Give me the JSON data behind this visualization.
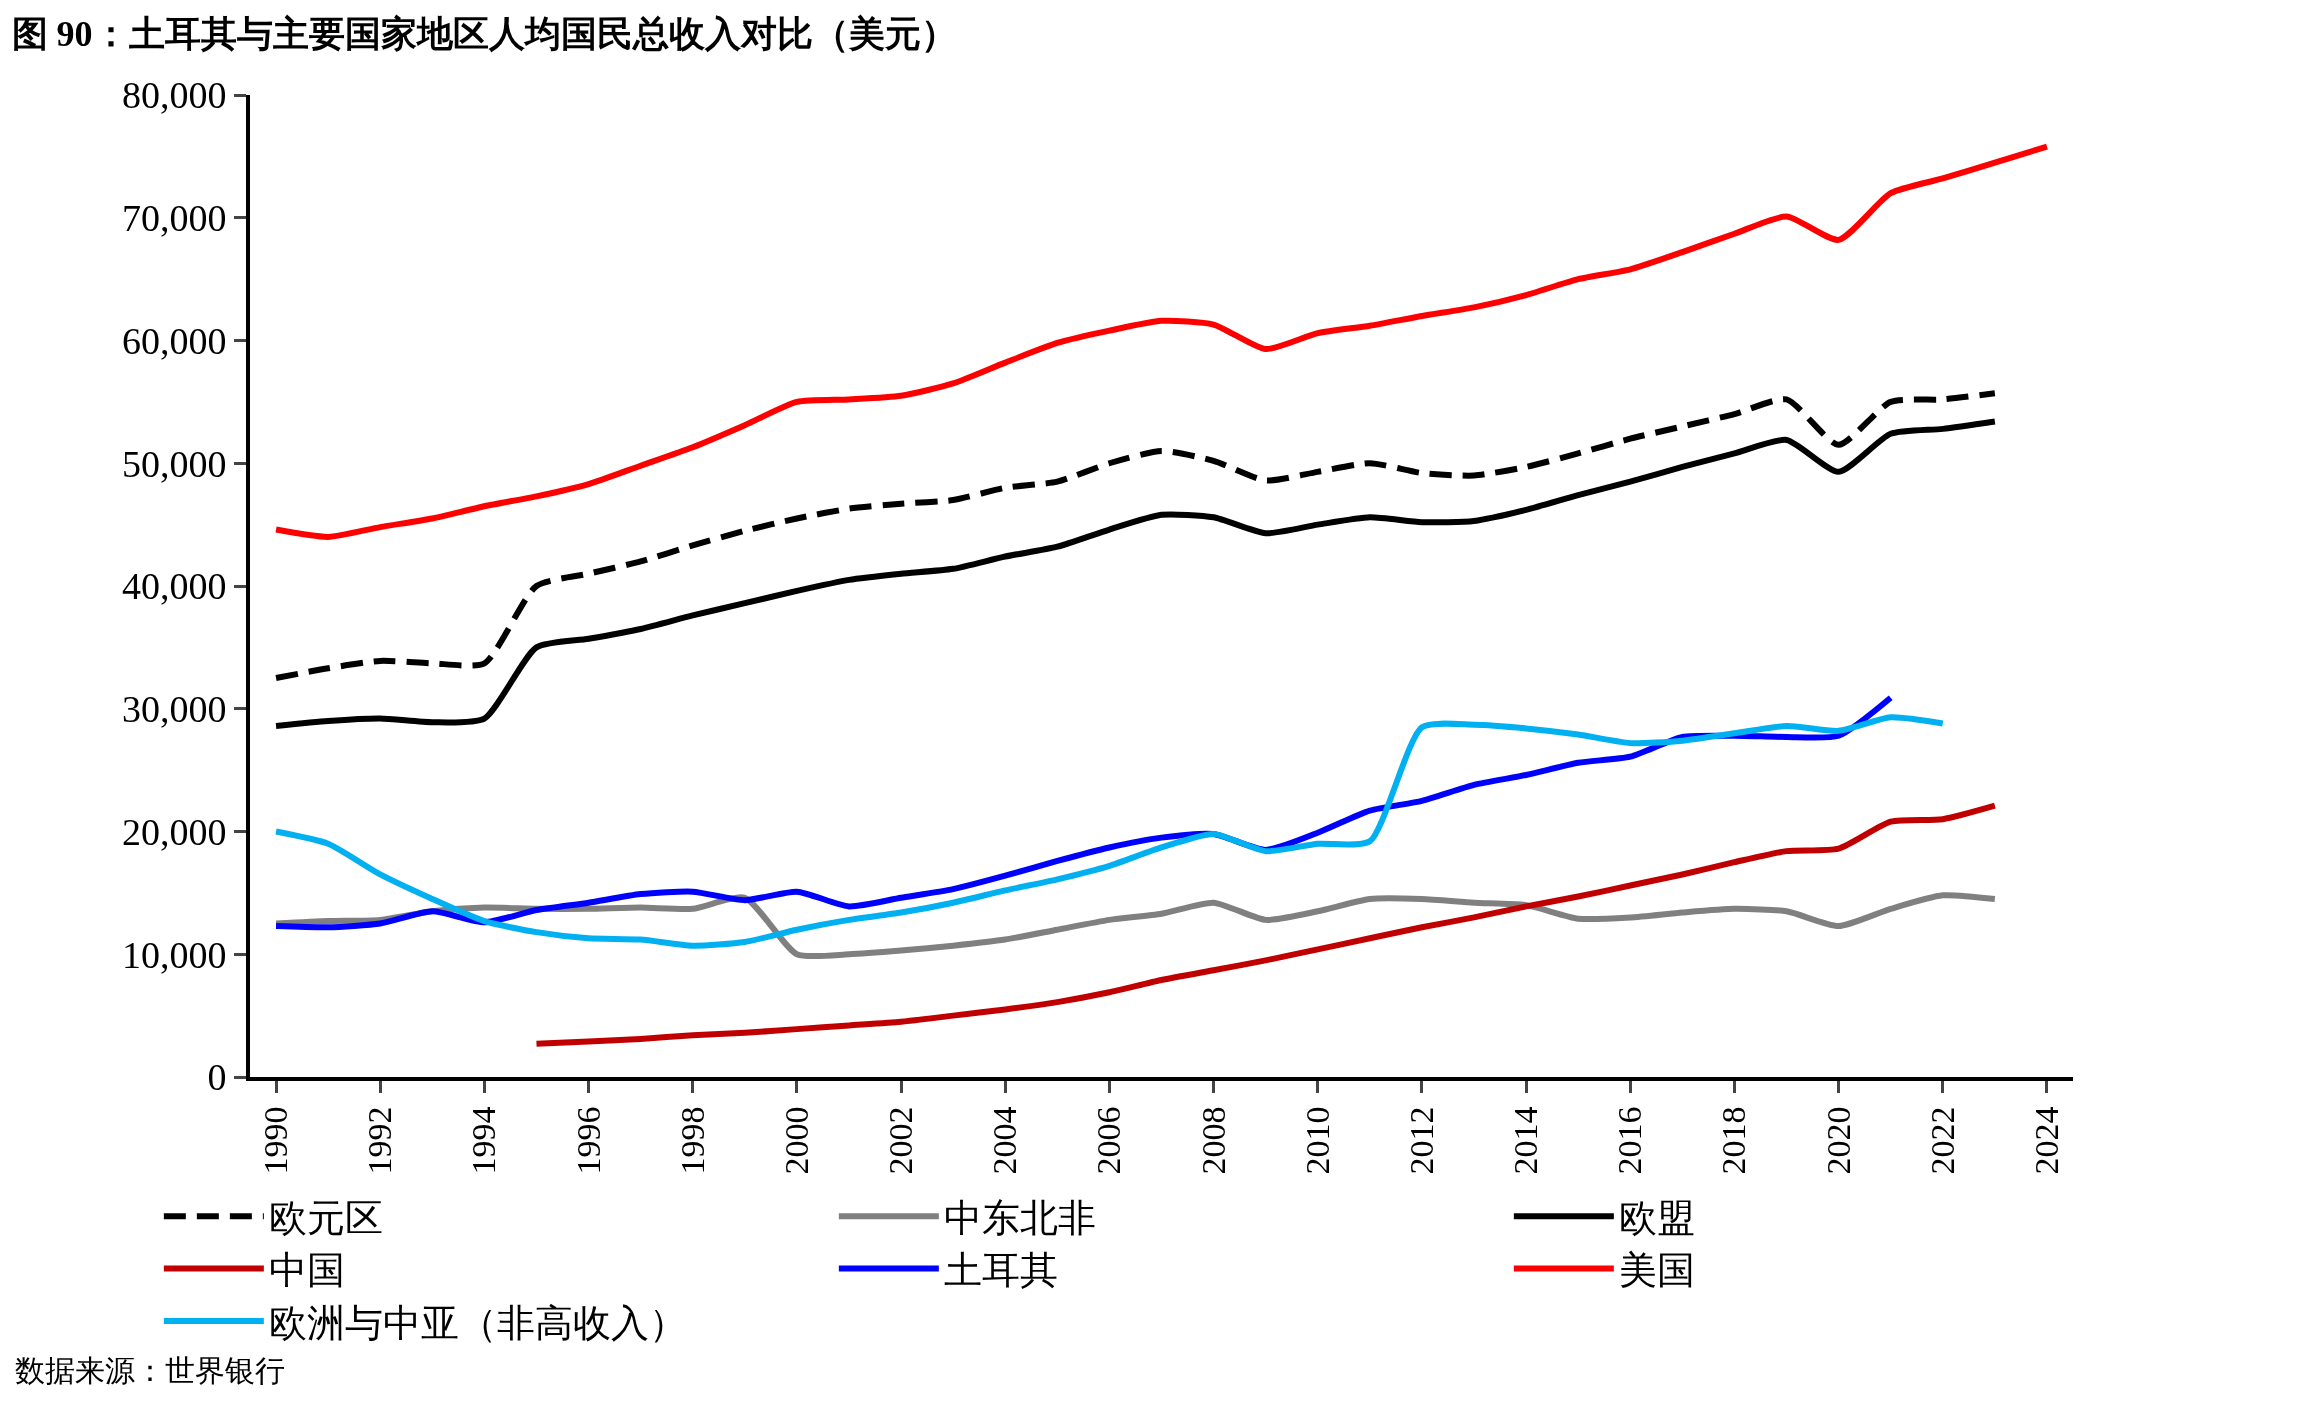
{
  "chart_data": {
    "type": "line",
    "title": "图 90：土耳其与主要国家地区人均国民总收入对比（美元）",
    "x": [
      1990,
      1991,
      1992,
      1993,
      1994,
      1995,
      1996,
      1997,
      1998,
      1999,
      2000,
      2001,
      2002,
      2003,
      2004,
      2005,
      2006,
      2007,
      2008,
      2009,
      2010,
      2011,
      2012,
      2013,
      2014,
      2015,
      2016,
      2017,
      2018,
      2019,
      2020,
      2021,
      2022,
      2023,
      2024
    ],
    "xlim": [
      1989.5,
      2024.5
    ],
    "xticks": [
      1990,
      1992,
      1994,
      1996,
      1998,
      2000,
      2002,
      2004,
      2006,
      2008,
      2010,
      2012,
      2014,
      2016,
      2018,
      2020,
      2022,
      2024
    ],
    "ylim": [
      0,
      80000
    ],
    "yticks": [
      0,
      {
        "value": 10000,
        "label": "10,000"
      },
      {
        "value": 20000,
        "label": "20,000"
      },
      {
        "value": 30000,
        "label": "30,000"
      },
      {
        "value": 40000,
        "label": "40,000"
      },
      {
        "value": 50000,
        "label": "50,000"
      },
      {
        "value": 60000,
        "label": "60,000"
      },
      {
        "value": 70000,
        "label": "70,000"
      },
      {
        "value": 80000,
        "label": "80,000"
      }
    ],
    "legend": "bottom",
    "marker": "none",
    "series": [
      {
        "name": "欧元区",
        "color": "#000000",
        "line_style": "dashed",
        "values": [
          32500,
          33300,
          33900,
          33700,
          33700,
          40000,
          41000,
          42000,
          43300,
          44500,
          45500,
          46300,
          46700,
          47000,
          48000,
          48500,
          50000,
          51000,
          50200,
          48600,
          49300,
          50000,
          49200,
          49000,
          49700,
          50800,
          52000,
          53000,
          54000,
          55200,
          51500,
          55000,
          55200,
          55700,
          null
        ]
      },
      {
        "name": "中东北非",
        "color": "#808080",
        "values": [
          12500,
          12700,
          12800,
          13500,
          13800,
          13700,
          13700,
          13800,
          13700,
          14600,
          10000,
          10000,
          10300,
          10700,
          11200,
          12000,
          12800,
          13300,
          14200,
          12800,
          13500,
          14500,
          14500,
          14200,
          14000,
          12900,
          13000,
          13400,
          13700,
          13500,
          12300,
          13700,
          14800,
          14500,
          null
        ]
      },
      {
        "name": "欧盟",
        "color": "#000000",
        "values": [
          28600,
          29000,
          29200,
          28900,
          29200,
          35000,
          35700,
          36500,
          37600,
          38600,
          39600,
          40500,
          41000,
          41400,
          42400,
          43200,
          44600,
          45800,
          45600,
          44300,
          45000,
          45600,
          45200,
          45300,
          46200,
          47400,
          48500,
          49700,
          50800,
          51900,
          49300,
          52400,
          52800,
          53400,
          null
        ]
      },
      {
        "name": "中国",
        "color": "#c00000",
        "values": [
          null,
          null,
          null,
          null,
          null,
          2700,
          2900,
          3100,
          3400,
          3600,
          3900,
          4200,
          4500,
          5000,
          5500,
          6100,
          6900,
          7900,
          8700,
          9500,
          10400,
          11300,
          12200,
          13000,
          13900,
          14700,
          15600,
          16500,
          17500,
          18400,
          18600,
          20800,
          21000,
          22100,
          null
        ]
      },
      {
        "name": "土耳其",
        "color": "#0000ff",
        "values": [
          12300,
          12200,
          12500,
          13500,
          12600,
          13600,
          14200,
          14900,
          15100,
          14400,
          15100,
          13900,
          14600,
          15300,
          16400,
          17600,
          18700,
          19500,
          19800,
          18500,
          19900,
          21700,
          22500,
          23800,
          24600,
          25600,
          26100,
          27700,
          27800,
          27700,
          27800,
          30900,
          null,
          null,
          null
        ]
      },
      {
        "name": "美国",
        "color": "#ff0000",
        "values": [
          44600,
          44000,
          44800,
          45500,
          46500,
          47300,
          48300,
          49800,
          51300,
          53100,
          55000,
          55200,
          55500,
          56500,
          58200,
          59800,
          60800,
          61600,
          61300,
          59300,
          60600,
          61200,
          62000,
          62700,
          63700,
          65000,
          65800,
          67200,
          68700,
          70100,
          68200,
          72000,
          73200,
          74500,
          75800
        ]
      },
      {
        "name": "欧洲与中亚（非高收入）",
        "color": "#00b0f0",
        "values": [
          20000,
          19000,
          16500,
          14500,
          12700,
          11800,
          11300,
          11200,
          10700,
          11000,
          12000,
          12800,
          13400,
          14200,
          15200,
          16100,
          17200,
          18700,
          19800,
          18400,
          19000,
          19200,
          28500,
          28700,
          28400,
          27900,
          27200,
          27400,
          28000,
          28600,
          28200,
          29300,
          28800,
          null,
          null
        ]
      }
    ],
    "annotations": [
      "数据来源：世界银行"
    ]
  }
}
